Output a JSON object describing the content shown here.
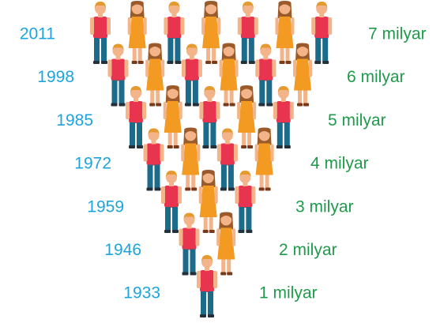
{
  "rows": [
    {
      "year": "2011",
      "label": "7 milyar"
    },
    {
      "year": "1998",
      "label": "6 milyar"
    },
    {
      "year": "1985",
      "label": "5 milyar"
    },
    {
      "year": "1972",
      "label": "4 milyar"
    },
    {
      "year": "1959",
      "label": "3 milyar"
    },
    {
      "year": "1946",
      "label": "2 milyar"
    },
    {
      "year": "1933",
      "label": "1 milyar"
    }
  ]
}
